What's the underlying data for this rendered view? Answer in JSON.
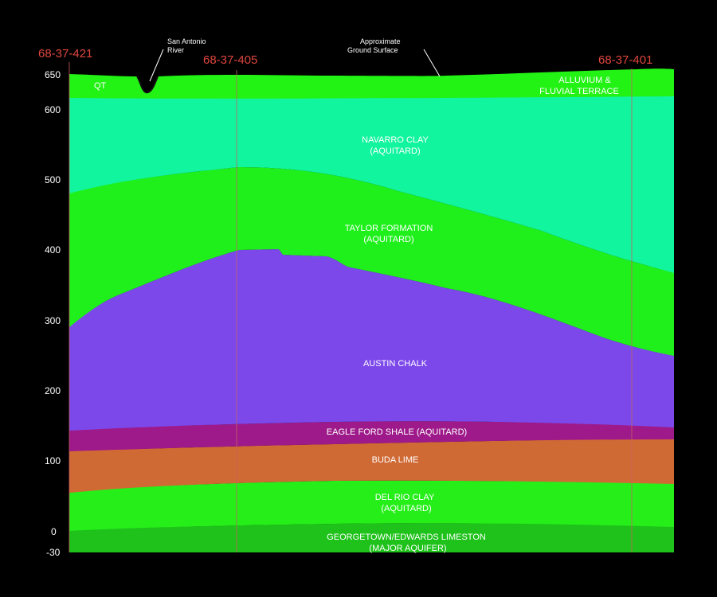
{
  "y_axis": {
    "ticks": [
      "650",
      "600",
      "500",
      "400",
      "300",
      "200",
      "100",
      "0",
      "-30"
    ]
  },
  "wells": {
    "left": "68-37-421",
    "middle": "68-37-405",
    "right": "68-37-401"
  },
  "annotations": {
    "river_line1": "San Antonio",
    "river_line2": "River",
    "ground_line1": "Approximate",
    "ground_line2": "Ground Surface"
  },
  "units": {
    "qt": "QT",
    "alluvium_line1": "ALLUVIUM &",
    "alluvium_line2": "FLUVIAL TERRACE",
    "navarro_line1": "NAVARRO CLAY",
    "navarro_line2": "(AQUITARD)",
    "taylor_line1": "TAYLOR FORMATION",
    "taylor_line2": "(AQUITARD)",
    "austin": "AUSTIN CHALK",
    "eagle_ford": "EAGLE FORD SHALE (AQUITARD)",
    "buda": "BUDA LIME",
    "delrio_line1": "DEL RIO CLAY",
    "delrio_line2": "(AQUITARD)",
    "georgetown_line1": "GEORGETOWN/EDWARDS LIMESTON",
    "georgetown_line2": "(MAJOR AQUIFER)"
  },
  "colors": {
    "background": "#000000",
    "alluvium": "#22f214",
    "navarro": "#11f59e",
    "taylor": "#1ff01c",
    "austin": "#7c48ea",
    "eagle_ford": "#9e1a8a",
    "buda": "#d06a35",
    "delrio": "#25ee19",
    "georgetown": "#1ec21a",
    "well_label": "#e0463f",
    "text": "#ffffff"
  }
}
